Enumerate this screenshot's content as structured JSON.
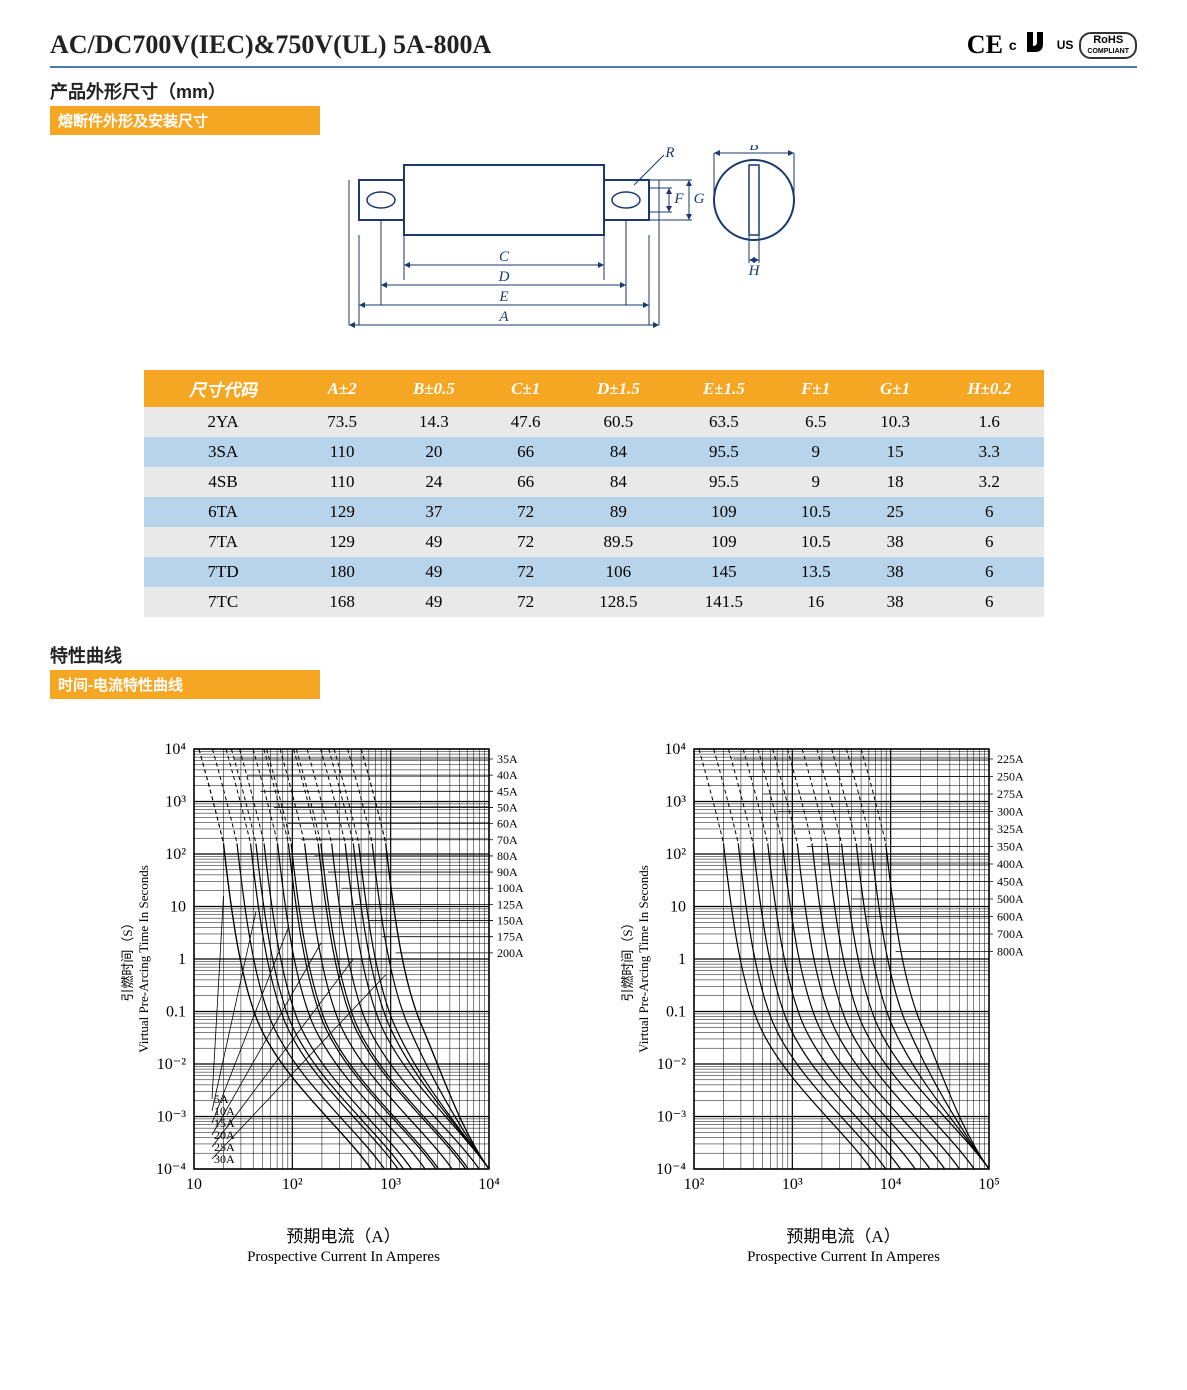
{
  "header": {
    "title": "AC/DC700V(IEC)&750V(UL) 5A-800A",
    "certs": {
      "ce": "CE",
      "ru_c": "c",
      "ru_us": "US",
      "rohs_top": "RoHS",
      "rohs_bot": "COMPLIANT"
    }
  },
  "section1": {
    "title": "产品外形尺寸（mm）",
    "subtitle": "熔断件外形及安装尺寸"
  },
  "diagram": {
    "labels": {
      "A": "A",
      "B": "B",
      "C": "C",
      "D": "D",
      "E": "E",
      "F": "F",
      "G": "G",
      "H": "H",
      "R": "R"
    },
    "stroke": "#1a3a6e",
    "text_color": "#1a3a6e",
    "font_family": "Times New Roman, serif",
    "font_size": 15
  },
  "table": {
    "headers": [
      "尺寸代码",
      "A±2",
      "B±0.5",
      "C±1",
      "D±1.5",
      "E±1.5",
      "F±1",
      "G±1",
      "H±0.2"
    ],
    "rows": [
      {
        "cls": "gray",
        "cells": [
          "2YA",
          "73.5",
          "14.3",
          "47.6",
          "60.5",
          "63.5",
          "6.5",
          "10.3",
          "1.6"
        ]
      },
      {
        "cls": "blue",
        "cells": [
          "3SA",
          "110",
          "20",
          "66",
          "84",
          "95.5",
          "9",
          "15",
          "3.3"
        ]
      },
      {
        "cls": "gray",
        "cells": [
          "4SB",
          "110",
          "24",
          "66",
          "84",
          "95.5",
          "9",
          "18",
          "3.2"
        ]
      },
      {
        "cls": "blue",
        "cells": [
          "6TA",
          "129",
          "37",
          "72",
          "89",
          "109",
          "10.5",
          "25",
          "6"
        ]
      },
      {
        "cls": "gray",
        "cells": [
          "7TA",
          "129",
          "49",
          "72",
          "89.5",
          "109",
          "10.5",
          "38",
          "6"
        ]
      },
      {
        "cls": "blue",
        "cells": [
          "7TD",
          "180",
          "49",
          "72",
          "106",
          "145",
          "13.5",
          "38",
          "6"
        ]
      },
      {
        "cls": "gray",
        "cells": [
          "7TC",
          "168",
          "49",
          "72",
          "128.5",
          "141.5",
          "16",
          "38",
          "6"
        ]
      }
    ]
  },
  "section2": {
    "title": "特性曲线",
    "subtitle": "时间-电流特性曲线"
  },
  "chart_common": {
    "y_label_cn": "引燃时间（S）",
    "y_label_en": "Virtual Pre-Arcing Time In Seconds",
    "x_label_cn": "预期电流（A）",
    "x_label_en": "Prospective Current In Amperes",
    "y_ticks": [
      "10⁻⁴",
      "10⁻³",
      "10⁻²",
      "0.1",
      "1",
      "10",
      "10²",
      "10³",
      "10⁴"
    ],
    "stroke": "#000",
    "bg": "#fff",
    "axis_font": "Times New Roman, serif",
    "axis_fontsize": 16,
    "label_fontsize": 13,
    "series_fontsize": 12
  },
  "chart1": {
    "x_ticks": [
      "10",
      "10²",
      "10³",
      "10⁴"
    ],
    "x_min": 0,
    "x_max": 3,
    "series_bl": [
      "5A",
      "10A",
      "15A",
      "20A",
      "25A",
      "30A"
    ],
    "series_tr": [
      "35A",
      "40A",
      "45A",
      "50A",
      "60A",
      "70A",
      "80A",
      "90A",
      "100A",
      "125A",
      "150A",
      "175A",
      "200A"
    ]
  },
  "chart2": {
    "x_ticks": [
      "10²",
      "10³",
      "10⁴",
      "10⁵"
    ],
    "x_min": 0,
    "x_max": 3,
    "series_tr": [
      "225A",
      "250A",
      "275A",
      "300A",
      "325A",
      "350A",
      "400A",
      "450A",
      "500A",
      "600A",
      "700A",
      "800A"
    ]
  }
}
